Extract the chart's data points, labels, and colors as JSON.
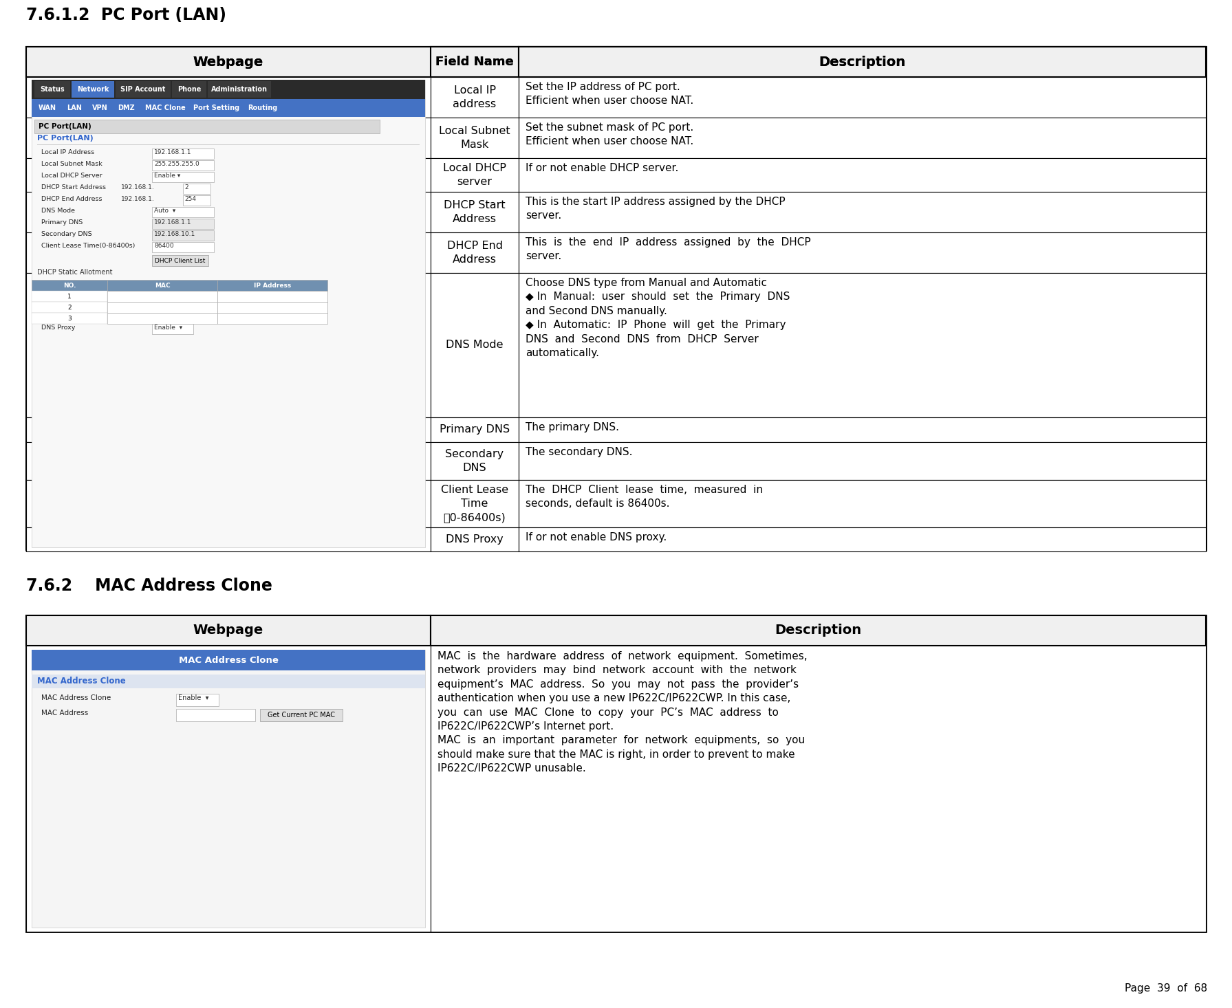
{
  "page_title": "7.6.1.2  PC Port (LAN)",
  "section2_title": "7.6.2    MAC Address Clone",
  "page_num": "Page  39  of  68",
  "bg_color": "#ffffff",
  "table1_rows": [
    [
      "Local IP\naddress",
      "Set the IP address of PC port.\nEfficient when user choose NAT."
    ],
    [
      "Local Subnet\nMask",
      "Set the subnet mask of PC port.\nEfficient when user choose NAT."
    ],
    [
      "Local DHCP\nserver",
      "If or not enable DHCP server."
    ],
    [
      "DHCP Start\nAddress",
      "This is the start IP address assigned by the DHCP\nserver."
    ],
    [
      "DHCP End\nAddress",
      "This  is  the  end  IP  address  assigned  by  the  DHCP\nserver."
    ],
    [
      "DNS Mode",
      "Choose DNS type from Manual and Automatic\n◆ In  Manual:  user  should  set  the  Primary  DNS\nand Second DNS manually.\n◆ In  Automatic:  IP  Phone  will  get  the  Primary\nDNS  and  Second  DNS  from  DHCP  Server\nautomatically."
    ],
    [
      "Primary DNS",
      "The primary DNS."
    ],
    [
      "Secondary\nDNS",
      "The secondary DNS."
    ],
    [
      "Client Lease\nTime\n（0-86400s)",
      "The  DHCP  Client  lease  time,  measured  in\nseconds, default is 86400s."
    ],
    [
      "DNS Proxy",
      "If or not enable DNS proxy."
    ]
  ],
  "table2_desc": "MAC  is  the  hardware  address  of  network  equipment.  Sometimes,\nnetwork  providers  may  bind  network  account  with  the  network\nequipment’s  MAC  address.  So  you  may  not  pass  the  provider’s\nauthentication when you use a new IP622C/IP622CWP. In this case,\nyou  can  use  MAC  Clone  to  copy  your  PC’s  MAC  address  to\nIP622C/IP622CWP’s Internet port.\nMAC  is  an  important  parameter  for  network  equipments,  so  you\nshould make sure that the MAC is right, in order to prevent to make\nIP622C/IP622CWP unusable."
}
